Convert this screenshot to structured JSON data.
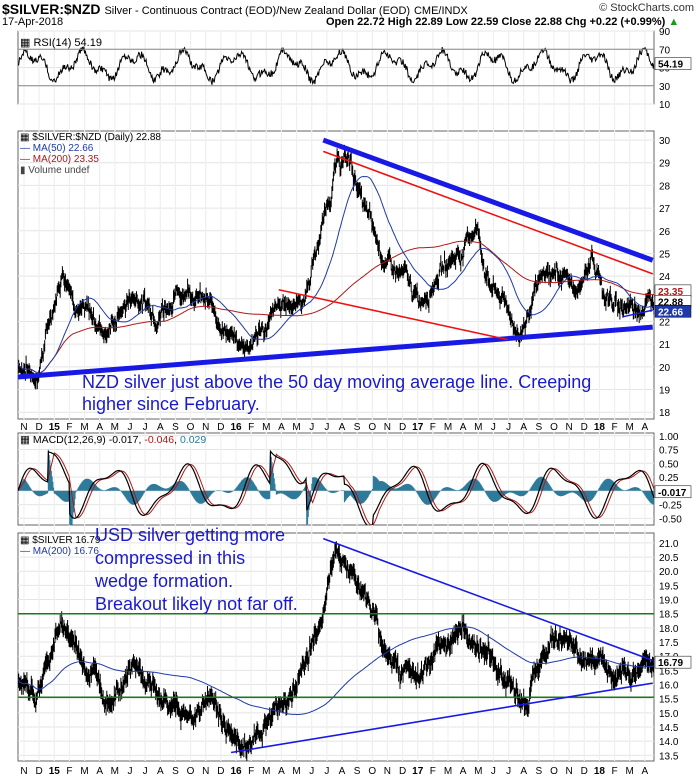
{
  "header": {
    "symbol": "$SILVER:$NZD",
    "name": "Silver - Continuous Contract (EOD)/New Zealand Dollar (EOD)",
    "exchange": "CME/INDX",
    "date": "17-Apr-2018",
    "quote": "Open 22.72  High 22.89  Low 22.59  Close 22.88  Chg +0.22 (+0.99%)",
    "quote_arrow": "▲",
    "copyright": "© StockCharts.com"
  },
  "rsi_panel": {
    "legend": "RSI(14) 54.19",
    "last_value": "54.19",
    "ticks": [
      "90",
      "70",
      "50",
      "30",
      "10"
    ]
  },
  "price_panel": {
    "legend_main": "$SILVER:$NZD (Daily) 22.88",
    "legend_ma50": "MA(50) 22.66",
    "legend_ma200": "MA(200) 23.35",
    "legend_volume": "Volume undef",
    "ticks": [
      "30",
      "29",
      "28",
      "27",
      "26",
      "25",
      "24",
      "23",
      "22",
      "21",
      "20",
      "19",
      "18"
    ],
    "badge_ma200": "23.35",
    "badge_close": "22.88",
    "badge_ma50": "22.66",
    "annotation": [
      "NZD silver just above the 50 day moving average line. Creeping",
      "higher since February."
    ]
  },
  "macd_panel": {
    "legend_prefix": "MACD(12,26,9) ",
    "legend_v1": "-0.017",
    "legend_sep": ", ",
    "legend_v2": "-0.046",
    "legend_sep2": ", ",
    "legend_v3": "0.029",
    "last_value": "-0.017",
    "ticks": [
      "1.00",
      "0.75",
      "0.50",
      "0.25",
      "0.00",
      "-0.25",
      "-0.50"
    ]
  },
  "usd_panel": {
    "legend_main": "$SILVER 16.79",
    "legend_ma200": "MA(200) 16.76",
    "badge_close": "16.79",
    "ticks": [
      "21.0",
      "20.5",
      "20.0",
      "19.5",
      "19.0",
      "18.5",
      "18.0",
      "17.5",
      "17.0",
      "16.5",
      "16.0",
      "15.5",
      "15.0",
      "14.5",
      "14.0",
      "13.5"
    ],
    "annotation": [
      "USD silver getting more",
      "compressed in this",
      "wedge formation.",
      "Breakout likely not far off."
    ]
  },
  "x_axis": {
    "labels": [
      "N",
      "D",
      "15",
      "F",
      "M",
      "A",
      "M",
      "J",
      "J",
      "A",
      "S",
      "O",
      "N",
      "D",
      "16",
      "F",
      "M",
      "A",
      "M",
      "J",
      "J",
      "A",
      "S",
      "O",
      "N",
      "D",
      "17",
      "F",
      "M",
      "A",
      "M",
      "J",
      "J",
      "A",
      "S",
      "O",
      "N",
      "D",
      "18",
      "F",
      "M",
      "A"
    ]
  },
  "colors": {
    "price": "#000000",
    "ma50": "#1f3aa8",
    "ma200": "#b01818",
    "trend_blue": "#1919e6",
    "trend_red": "#ee1111",
    "support_green": "#1a7a1a",
    "hist": "#2d7a9a",
    "annotation_text": "#1a1acc"
  },
  "chart_data": [
    {
      "type": "line",
      "title": "RSI(14)",
      "series": [
        {
          "name": "RSI(14)",
          "values": [
            54.19
          ]
        }
      ],
      "ylim": [
        10,
        90
      ]
    },
    {
      "type": "line",
      "title": "$SILVER:$NZD (Daily)",
      "series": [
        {
          "name": "$SILVER:$NZD",
          "values": [
            22.88
          ]
        },
        {
          "name": "MA(50)",
          "values": [
            22.66
          ]
        },
        {
          "name": "MA(200)",
          "values": [
            23.35
          ]
        }
      ],
      "ohlc": {
        "open": 22.72,
        "high": 22.89,
        "low": 22.59,
        "close": 22.88
      },
      "ylim": [
        18,
        30
      ]
    },
    {
      "type": "line",
      "title": "MACD(12,26,9)",
      "series": [
        {
          "name": "MACD",
          "values": [
            -0.017
          ]
        },
        {
          "name": "Signal",
          "values": [
            -0.046
          ]
        },
        {
          "name": "Histogram",
          "values": [
            0.029
          ]
        }
      ],
      "ylim": [
        -0.5,
        1.0
      ]
    },
    {
      "type": "line",
      "title": "$SILVER",
      "series": [
        {
          "name": "$SILVER",
          "values": [
            16.79
          ]
        },
        {
          "name": "MA(200)",
          "values": [
            16.76
          ]
        }
      ],
      "ylim": [
        13.5,
        21.0
      ]
    }
  ]
}
